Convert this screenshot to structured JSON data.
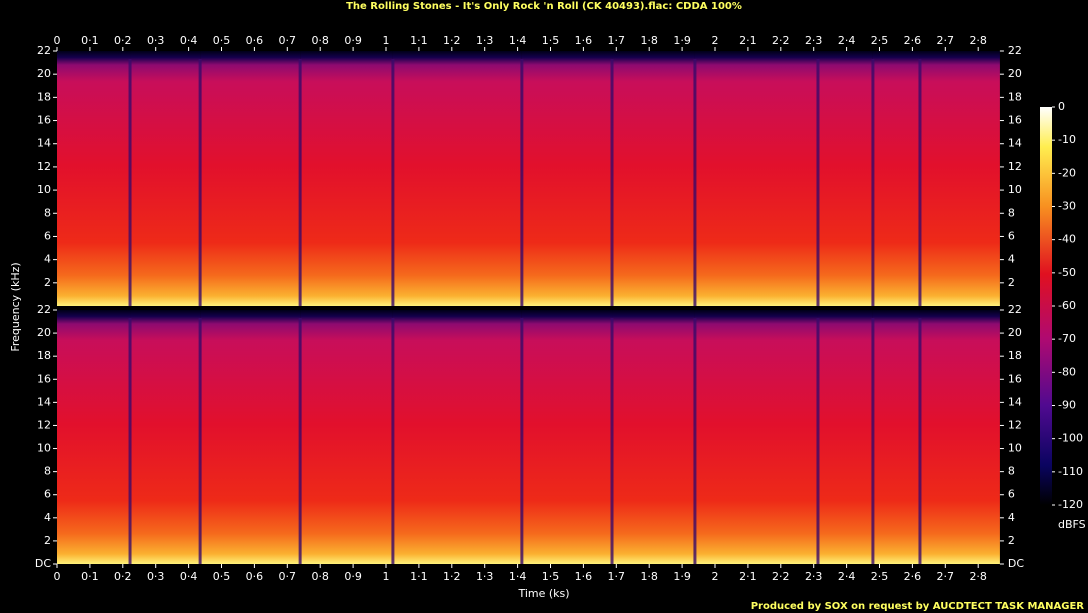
{
  "chart_data": {
    "type": "spectrogram",
    "title": "The Rolling Stones - It's Only Rock 'n Roll (CK 40493).flac: CDDA 100%",
    "x_label": "Time (ks)",
    "y_label": "Frequency (kHz)",
    "footer": "Produced by SOX on request by AUCDTECT TASK MANAGER",
    "xlim": [
      0,
      2.866
    ],
    "xticks": [
      0,
      {
        "value": 0.1,
        "label": "0·1"
      },
      {
        "value": 0.2,
        "label": "0·2"
      },
      {
        "value": 0.3,
        "label": "0·3"
      },
      {
        "value": 0.4,
        "label": "0·4"
      },
      {
        "value": 0.5,
        "label": "0·5"
      },
      {
        "value": 0.6,
        "label": "0·6"
      },
      {
        "value": 0.7,
        "label": "0·7"
      },
      {
        "value": 0.8,
        "label": "0·8"
      },
      {
        "value": 0.9,
        "label": "0·9"
      },
      1,
      {
        "value": 1.1,
        "label": "1·1"
      },
      {
        "value": 1.2,
        "label": "1·2"
      },
      {
        "value": 1.3,
        "label": "1·3"
      },
      {
        "value": 1.4,
        "label": "1·4"
      },
      {
        "value": 1.5,
        "label": "1·5"
      },
      {
        "value": 1.6,
        "label": "1·6"
      },
      {
        "value": 1.7,
        "label": "1·7"
      },
      {
        "value": 1.8,
        "label": "1·8"
      },
      {
        "value": 1.9,
        "label": "1·9"
      },
      2,
      {
        "value": 2.1,
        "label": "2·1"
      },
      {
        "value": 2.2,
        "label": "2·2"
      },
      {
        "value": 2.3,
        "label": "2·3"
      },
      {
        "value": 2.4,
        "label": "2·4"
      },
      {
        "value": 2.5,
        "label": "2·5"
      },
      {
        "value": 2.6,
        "label": "2·6"
      },
      {
        "value": 2.7,
        "label": "2·7"
      },
      {
        "value": 2.8,
        "label": "2·8"
      }
    ],
    "segments": [
      0,
      0.222,
      0.435,
      0.739,
      1.021,
      1.413,
      1.687,
      1.939,
      2.313,
      2.48,
      2.623,
      2.866
    ],
    "panels": [
      {
        "ylim": [
          0,
          22
        ],
        "yticks": [
          2,
          4,
          6,
          8,
          10,
          12,
          14,
          16,
          18,
          20,
          22
        ]
      },
      {
        "ylim": [
          0,
          22
        ],
        "yticks": [
          {
            "value": 0,
            "label": "DC"
          },
          2,
          4,
          6,
          8,
          10,
          12,
          14,
          16,
          18,
          20,
          22
        ]
      }
    ],
    "colorbar": {
      "label": "dBFS",
      "lim": [
        -120,
        0
      ],
      "ticks": [
        0,
        -10,
        -20,
        -30,
        -40,
        -50,
        -60,
        -70,
        -80,
        -90,
        -100,
        -110,
        -120
      ]
    }
  }
}
